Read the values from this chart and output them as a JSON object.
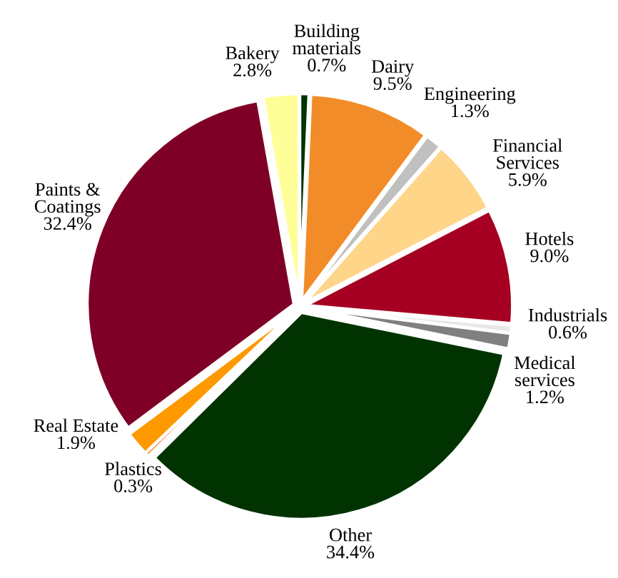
{
  "chart_data": {
    "type": "pie",
    "categories": [
      "Bakery",
      "Building\nmaterials",
      "Dairy",
      "Engineering",
      "Financial\nServices",
      "Hotels",
      "Industrials",
      "Medical\nservices",
      "Other",
      "Plastics",
      "Real Estate",
      "Paints &\nCoatings"
    ],
    "values": [
      2.8,
      0.7,
      9.5,
      1.3,
      5.9,
      9.0,
      0.6,
      1.2,
      34.4,
      0.3,
      1.9,
      32.4
    ],
    "colors": [
      "#ffff99",
      "#003300",
      "#f28c28",
      "#c0c0c0",
      "#ffd58a",
      "#a50021",
      "#e8e8e8",
      "#808080",
      "#003300",
      "#ff6600",
      "#ff9900",
      "#7f0026"
    ],
    "value_labels": [
      "2.8%",
      "0.7%",
      "9.5%",
      "1.3%",
      "5.9%",
      "9.0%",
      "0.6%",
      "1.2%",
      "34.4%",
      "0.3%",
      "1.9%",
      "32.4%"
    ],
    "legend": false
  }
}
